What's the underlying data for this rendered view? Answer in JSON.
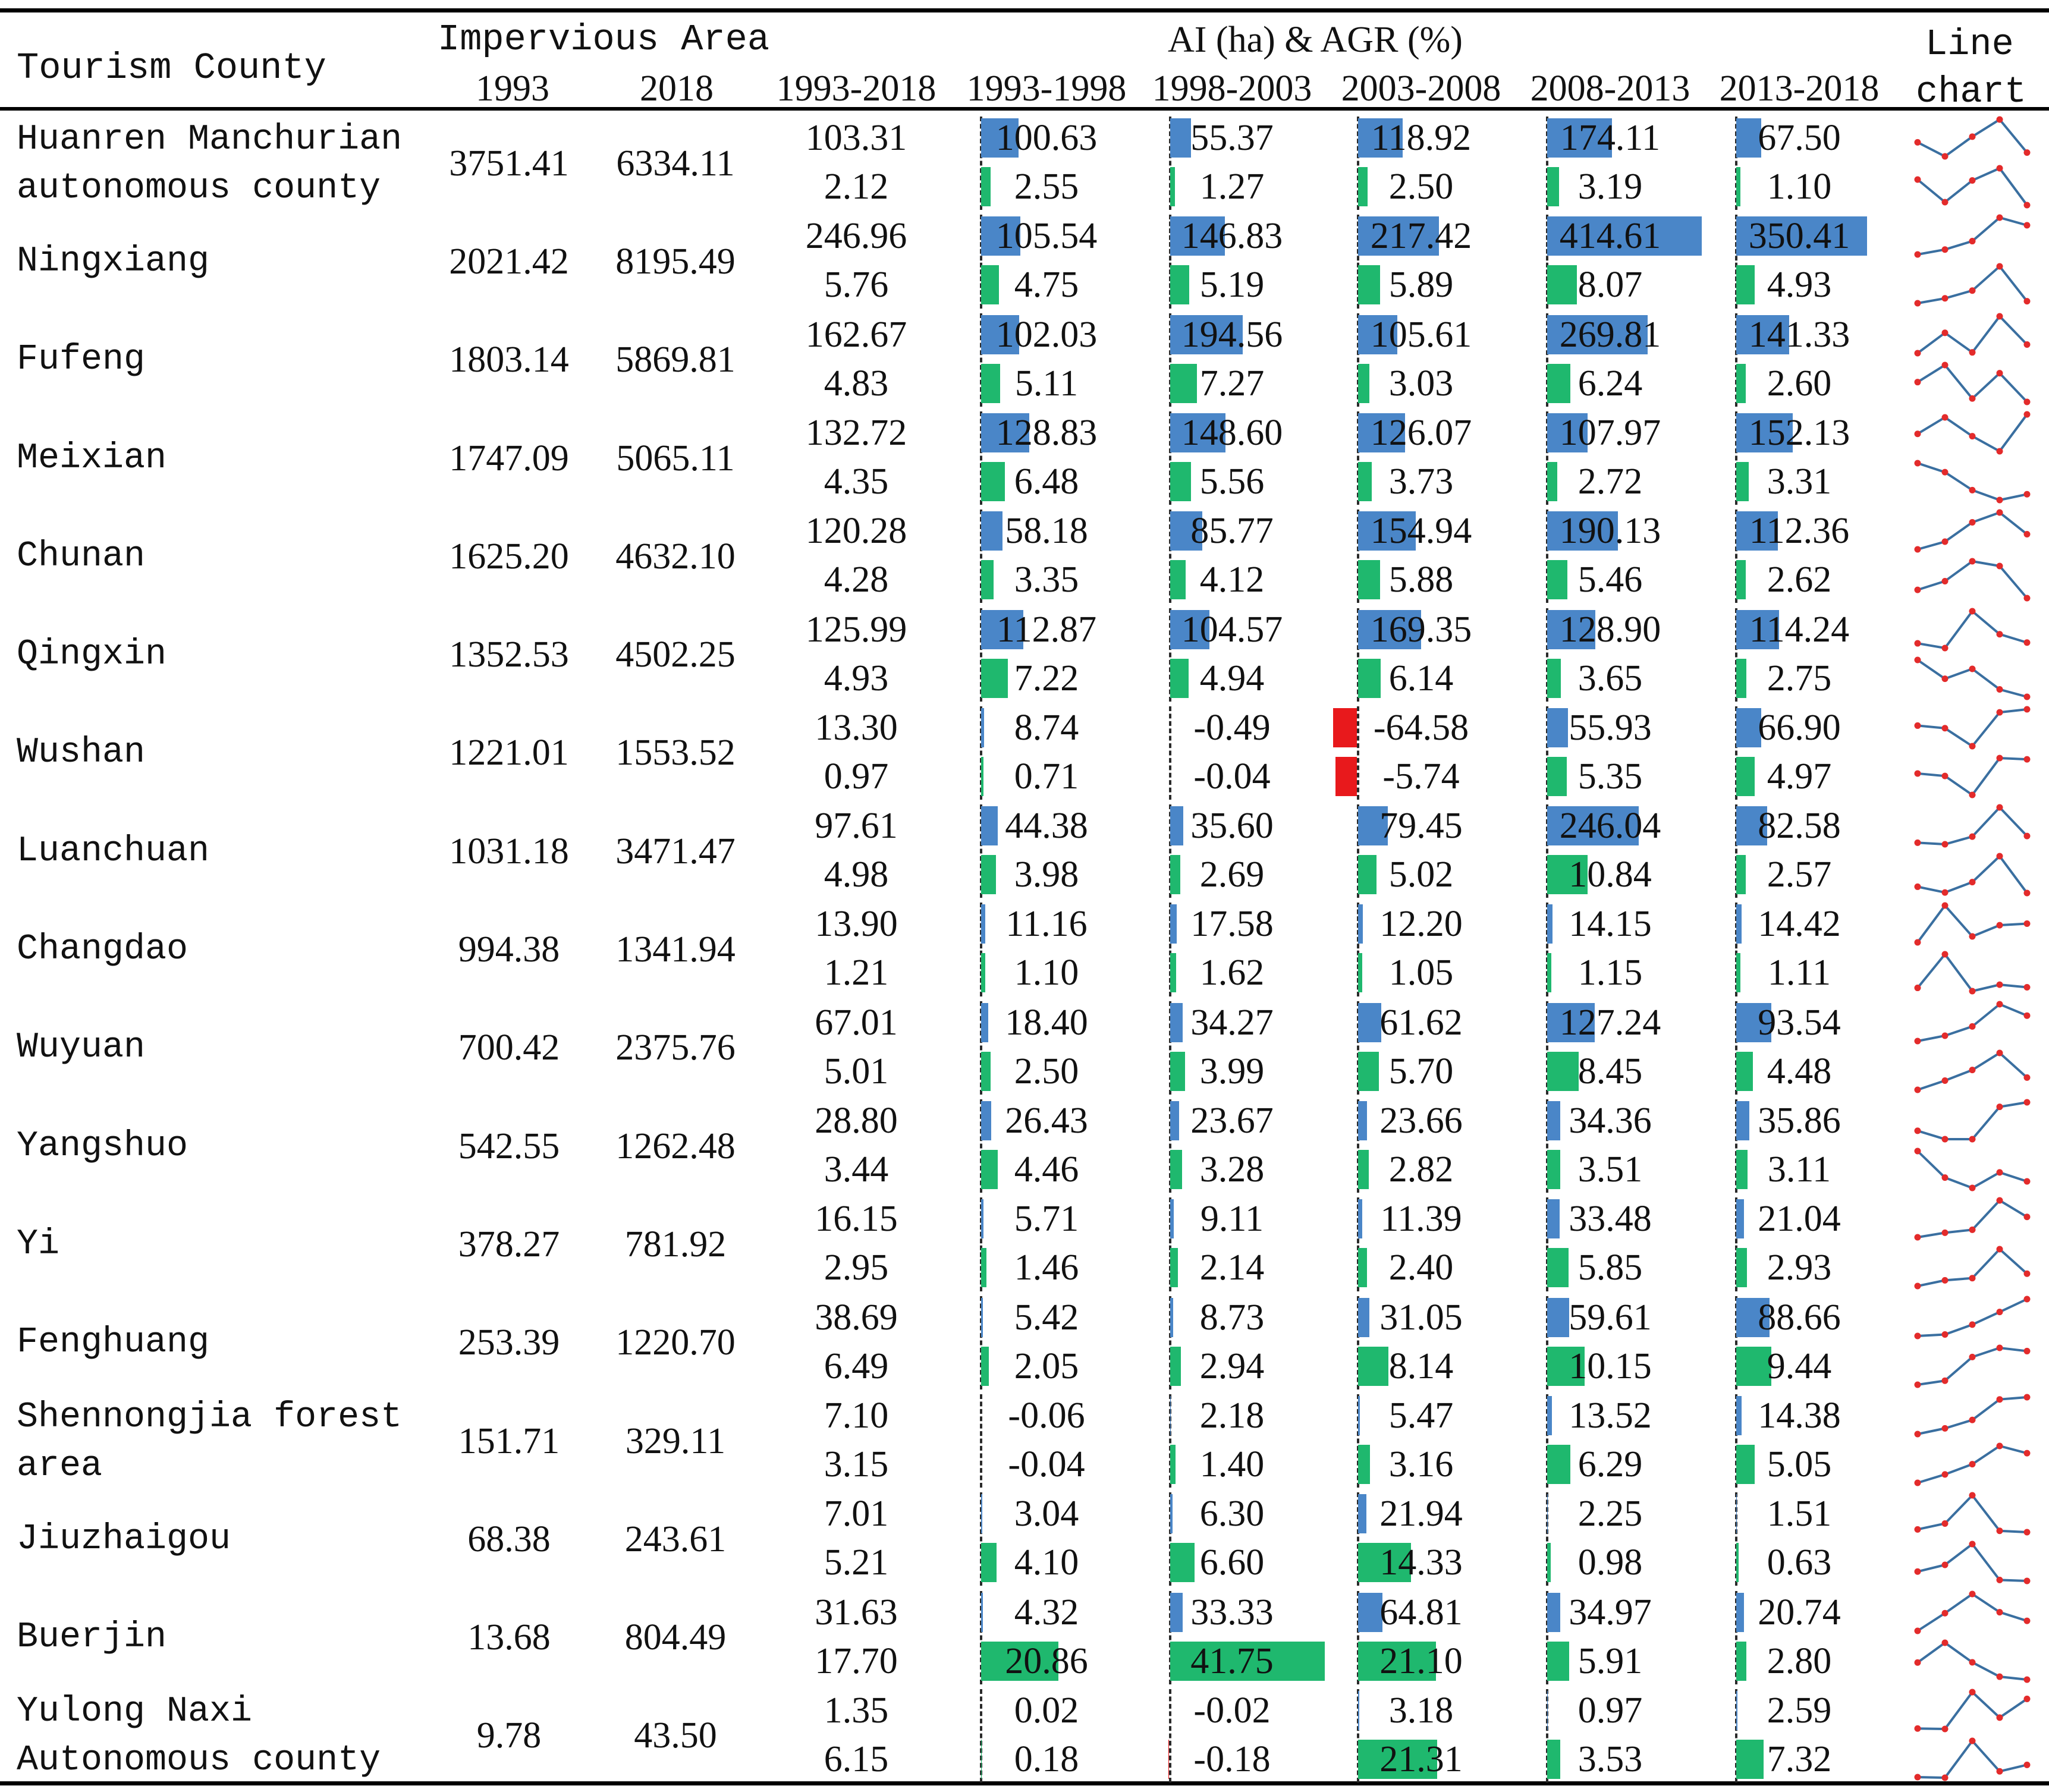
{
  "header": {
    "tourism_county": "Tourism County",
    "impervious_area": "Impervious Area",
    "ai_agr": "AI (ha) & AGR (%)",
    "line_chart_1": "Line",
    "line_chart_2": "chart",
    "year_1993": "1993",
    "year_2018": "2018",
    "periods": [
      "1993-2018",
      "1993-1998",
      "1998-2003",
      "2003-2008",
      "2008-2013",
      "2013-2018"
    ]
  },
  "colors": {
    "ai_bar": "#4a86c8",
    "agr_bar": "#1fb86e",
    "negative_bar": "#e8191c",
    "line": "#3a6fa0",
    "marker": "#e32b2b"
  },
  "rows": [
    {
      "name_lines": [
        "Huanren Manchurian",
        "autonomous county"
      ],
      "a1993": "3751.41",
      "a2018": "6334.11",
      "ai": [
        "103.31",
        "100.63",
        "55.37",
        "118.92",
        "174.11",
        "67.50"
      ],
      "agr": [
        "2.12",
        "2.55",
        "1.27",
        "2.50",
        "3.19",
        "1.10"
      ]
    },
    {
      "name_lines": [
        "Ningxiang"
      ],
      "a1993": "2021.42",
      "a2018": "8195.49",
      "ai": [
        "246.96",
        "105.54",
        "146.83",
        "217.42",
        "414.61",
        "350.41"
      ],
      "agr": [
        "5.76",
        "4.75",
        "5.19",
        "5.89",
        "8.07",
        "4.93"
      ]
    },
    {
      "name_lines": [
        "Fufeng"
      ],
      "a1993": "1803.14",
      "a2018": "5869.81",
      "ai": [
        "162.67",
        "102.03",
        "194.56",
        "105.61",
        "269.81",
        "141.33"
      ],
      "agr": [
        "4.83",
        "5.11",
        "7.27",
        "3.03",
        "6.24",
        "2.60"
      ]
    },
    {
      "name_lines": [
        "Meixian"
      ],
      "a1993": "1747.09",
      "a2018": "5065.11",
      "ai": [
        "132.72",
        "128.83",
        "148.60",
        "126.07",
        "107.97",
        "152.13"
      ],
      "agr": [
        "4.35",
        "6.48",
        "5.56",
        "3.73",
        "2.72",
        "3.31"
      ]
    },
    {
      "name_lines": [
        "Chunan"
      ],
      "a1993": "1625.20",
      "a2018": "4632.10",
      "ai": [
        "120.28",
        "58.18",
        "85.77",
        "154.94",
        "190.13",
        "112.36"
      ],
      "agr": [
        "4.28",
        "3.35",
        "4.12",
        "5.88",
        "5.46",
        "2.62"
      ]
    },
    {
      "name_lines": [
        "Qingxin"
      ],
      "a1993": "1352.53",
      "a2018": "4502.25",
      "ai": [
        "125.99",
        "112.87",
        "104.57",
        "169.35",
        "128.90",
        "114.24"
      ],
      "agr": [
        "4.93",
        "7.22",
        "4.94",
        "6.14",
        "3.65",
        "2.75"
      ]
    },
    {
      "name_lines": [
        "Wushan"
      ],
      "a1993": "1221.01",
      "a2018": "1553.52",
      "ai": [
        "13.30",
        "8.74",
        "-0.49",
        "-64.58",
        "55.93",
        "66.90"
      ],
      "agr": [
        "0.97",
        "0.71",
        "-0.04",
        "-5.74",
        "5.35",
        "4.97"
      ]
    },
    {
      "name_lines": [
        "Luanchuan"
      ],
      "a1993": "1031.18",
      "a2018": "3471.47",
      "ai": [
        "97.61",
        "44.38",
        "35.60",
        "79.45",
        "246.04",
        "82.58"
      ],
      "agr": [
        "4.98",
        "3.98",
        "2.69",
        "5.02",
        "10.84",
        "2.57"
      ]
    },
    {
      "name_lines": [
        "Changdao"
      ],
      "a1993": "994.38",
      "a2018": "1341.94",
      "ai": [
        "13.90",
        "11.16",
        "17.58",
        "12.20",
        "14.15",
        "14.42"
      ],
      "agr": [
        "1.21",
        "1.10",
        "1.62",
        "1.05",
        "1.15",
        "1.11"
      ]
    },
    {
      "name_lines": [
        "Wuyuan"
      ],
      "a1993": "700.42",
      "a2018": "2375.76",
      "ai": [
        "67.01",
        "18.40",
        "34.27",
        "61.62",
        "127.24",
        "93.54"
      ],
      "agr": [
        "5.01",
        "2.50",
        "3.99",
        "5.70",
        "8.45",
        "4.48"
      ]
    },
    {
      "name_lines": [
        "Yangshuo"
      ],
      "a1993": "542.55",
      "a2018": "1262.48",
      "ai": [
        "28.80",
        "26.43",
        "23.67",
        "23.66",
        "34.36",
        "35.86"
      ],
      "agr": [
        "3.44",
        "4.46",
        "3.28",
        "2.82",
        "3.51",
        "3.11"
      ]
    },
    {
      "name_lines": [
        "Yi"
      ],
      "a1993": "378.27",
      "a2018": "781.92",
      "ai": [
        "16.15",
        "5.71",
        "9.11",
        "11.39",
        "33.48",
        "21.04"
      ],
      "agr": [
        "2.95",
        "1.46",
        "2.14",
        "2.40",
        "5.85",
        "2.93"
      ]
    },
    {
      "name_lines": [
        "Fenghuang"
      ],
      "a1993": "253.39",
      "a2018": "1220.70",
      "ai": [
        "38.69",
        "5.42",
        "8.73",
        "31.05",
        "59.61",
        "88.66"
      ],
      "agr": [
        "6.49",
        "2.05",
        "2.94",
        "8.14",
        "10.15",
        "9.44"
      ]
    },
    {
      "name_lines": [
        "Shennongjia forest",
        "area"
      ],
      "a1993": "151.71",
      "a2018": "329.11",
      "ai": [
        "7.10",
        "-0.06",
        "2.18",
        "5.47",
        "13.52",
        "14.38"
      ],
      "agr": [
        "3.15",
        "-0.04",
        "1.40",
        "3.16",
        "6.29",
        "5.05"
      ]
    },
    {
      "name_lines": [
        "Jiuzhaigou"
      ],
      "a1993": "68.38",
      "a2018": "243.61",
      "ai": [
        "7.01",
        "3.04",
        "6.30",
        "21.94",
        "2.25",
        "1.51"
      ],
      "agr": [
        "5.21",
        "4.10",
        "6.60",
        "14.33",
        "0.98",
        "0.63"
      ]
    },
    {
      "name_lines": [
        "Buerjin"
      ],
      "a1993": "13.68",
      "a2018": "804.49",
      "ai": [
        "31.63",
        "4.32",
        "33.33",
        "64.81",
        "34.97",
        "20.74"
      ],
      "agr": [
        "17.70",
        "20.86",
        "41.75",
        "21.10",
        "5.91",
        "2.80"
      ]
    },
    {
      "name_lines": [
        "Yulong Naxi",
        "Autonomous county"
      ],
      "a1993": "9.78",
      "a2018": "43.50",
      "ai": [
        "1.35",
        "0.02",
        "-0.02",
        "3.18",
        "0.97",
        "2.59"
      ],
      "agr": [
        "6.15",
        "0.18",
        "-0.18",
        "21.31",
        "3.53",
        "7.32"
      ]
    }
  ]
}
